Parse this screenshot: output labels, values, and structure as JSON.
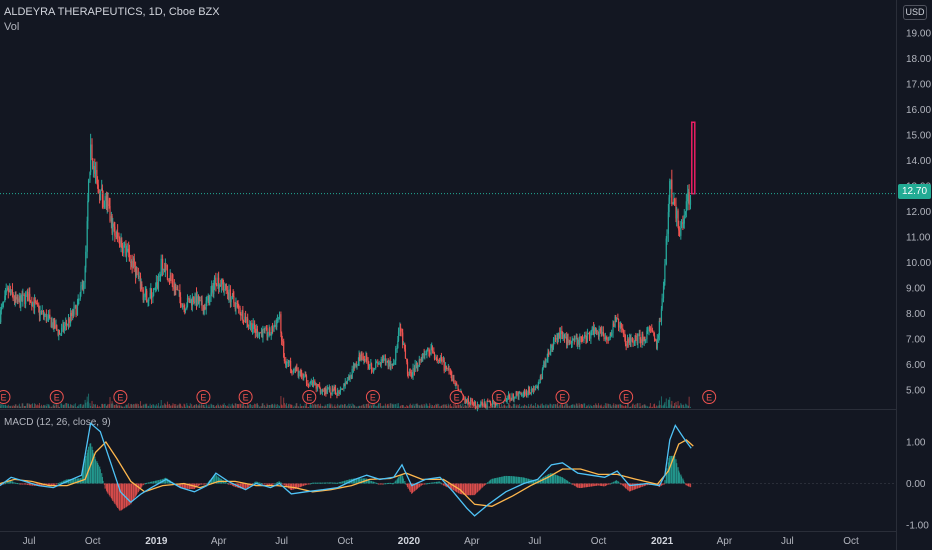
{
  "header": {
    "symbol_title": "ALDEYRA THERAPEUTICS, 1D, Cboe BZX",
    "volume_label": "Vol",
    "currency": "USD",
    "current_price": "12.70",
    "macd_label": "MACD (12, 26, close, 9)"
  },
  "colors": {
    "background": "#131722",
    "up": "#26a69a",
    "down": "#ef5350",
    "macd_line": "#4fc3f7",
    "signal_line": "#ffb74d",
    "price_line": "#22ab94",
    "earnings_marker": "#ef5350",
    "highlight_bar": "#e91e63"
  },
  "chart_data": [
    {
      "type": "candlestick",
      "title": "ALDEYRA THERAPEUTICS, 1D, Cboe BZX",
      "currency": "USD",
      "y_ticks": [
        "19.00",
        "18.00",
        "17.00",
        "16.00",
        "15.00",
        "14.00",
        "13.00",
        "12.00",
        "11.00",
        "10.00",
        "9.00",
        "8.00",
        "7.00",
        "6.00",
        "5.00"
      ],
      "ylim": [
        4.2,
        19.8
      ],
      "last_price": 12.7,
      "x_ticks": [
        "Jul",
        "Oct",
        "2019",
        "Apr",
        "Jul",
        "Oct",
        "2020",
        "Apr",
        "Jul",
        "Oct",
        "2021",
        "Apr",
        "Jul",
        "Oct"
      ],
      "x_tick_bold": [
        "2019",
        "2020",
        "2021"
      ],
      "x_range": [
        "2018-05-20",
        "2021-12-05"
      ],
      "close_path": [
        [
          "2018-05-20",
          7.9
        ],
        [
          "2018-06-01",
          8.9
        ],
        [
          "2018-06-15",
          8.4
        ],
        [
          "2018-07-01",
          8.7
        ],
        [
          "2018-07-15",
          8.1
        ],
        [
          "2018-08-01",
          7.7
        ],
        [
          "2018-08-15",
          7.2
        ],
        [
          "2018-09-01",
          7.9
        ],
        [
          "2018-09-10",
          8.3
        ],
        [
          "2018-09-20",
          9.5
        ],
        [
          "2018-09-28",
          14.4
        ],
        [
          "2018-10-08",
          12.9
        ],
        [
          "2018-10-20",
          12.4
        ],
        [
          "2018-11-01",
          11.2
        ],
        [
          "2018-11-15",
          10.6
        ],
        [
          "2018-12-01",
          9.8
        ],
        [
          "2018-12-15",
          8.6
        ],
        [
          "2019-01-01",
          8.9
        ],
        [
          "2019-01-10",
          10.0
        ],
        [
          "2019-01-25",
          9.2
        ],
        [
          "2019-02-10",
          8.3
        ],
        [
          "2019-02-25",
          8.6
        ],
        [
          "2019-03-10",
          8.2
        ],
        [
          "2019-03-20",
          8.6
        ],
        [
          "2019-03-28",
          9.4
        ],
        [
          "2019-04-10",
          9.0
        ],
        [
          "2019-04-25",
          8.4
        ],
        [
          "2019-05-10",
          7.8
        ],
        [
          "2019-05-25",
          7.3
        ],
        [
          "2019-06-15",
          7.2
        ],
        [
          "2019-06-28",
          7.9
        ],
        [
          "2019-07-05",
          6.2
        ],
        [
          "2019-07-20",
          5.8
        ],
        [
          "2019-08-10",
          5.3
        ],
        [
          "2019-08-30",
          5.0
        ],
        [
          "2019-09-20",
          4.9
        ],
        [
          "2019-10-10",
          5.6
        ],
        [
          "2019-10-25",
          6.4
        ],
        [
          "2019-11-10",
          5.9
        ],
        [
          "2019-11-25",
          6.1
        ],
        [
          "2019-12-10",
          6.0
        ],
        [
          "2019-12-20",
          7.4
        ],
        [
          "2020-01-01",
          5.5
        ],
        [
          "2020-01-20",
          6.3
        ],
        [
          "2020-02-01",
          6.6
        ],
        [
          "2020-02-20",
          6.0
        ],
        [
          "2020-03-05",
          5.4
        ],
        [
          "2020-03-20",
          4.6
        ],
        [
          "2020-04-10",
          4.4
        ],
        [
          "2020-05-01",
          4.5
        ],
        [
          "2020-05-25",
          4.7
        ],
        [
          "2020-06-15",
          4.9
        ],
        [
          "2020-07-05",
          5.1
        ],
        [
          "2020-07-20",
          6.4
        ],
        [
          "2020-08-05",
          7.2
        ],
        [
          "2020-08-25",
          6.8
        ],
        [
          "2020-09-10",
          7.0
        ],
        [
          "2020-09-25",
          7.4
        ],
        [
          "2020-10-15",
          7.1
        ],
        [
          "2020-10-28",
          7.8
        ],
        [
          "2020-11-10",
          6.9
        ],
        [
          "2020-12-01",
          7.0
        ],
        [
          "2020-12-15",
          7.3
        ],
        [
          "2020-12-25",
          6.7
        ],
        [
          "2021-01-05",
          9.5
        ],
        [
          "2021-01-12",
          13.2
        ],
        [
          "2021-01-20",
          12.0
        ],
        [
          "2021-01-28",
          11.2
        ],
        [
          "2021-02-05",
          12.4
        ],
        [
          "2021-02-12",
          12.7
        ]
      ],
      "highlight_bar": {
        "date": "2021-02-15",
        "low": 12.7,
        "high": 15.5
      },
      "earnings_markers": {
        "label": "E",
        "dates": [
          "2018-05-25",
          "2018-08-10",
          "2018-11-10",
          "2019-03-10",
          "2019-05-10",
          "2019-08-10",
          "2019-11-10",
          "2020-03-10",
          "2020-05-10",
          "2020-08-10",
          "2020-11-10",
          "2021-03-10"
        ]
      }
    },
    {
      "type": "macd",
      "title": "MACD (12, 26, close, 9)",
      "y_ticks": [
        "1.00",
        "0.00",
        "-1.00"
      ],
      "ylim": [
        -1.05,
        1.5
      ],
      "macd_path": [
        [
          "2018-05-20",
          -0.05
        ],
        [
          "2018-06-05",
          0.15
        ],
        [
          "2018-06-25",
          0.05
        ],
        [
          "2018-07-15",
          -0.05
        ],
        [
          "2018-08-05",
          -0.1
        ],
        [
          "2018-08-25",
          0.05
        ],
        [
          "2018-09-15",
          0.2
        ],
        [
          "2018-09-28",
          1.45
        ],
        [
          "2018-10-12",
          1.25
        ],
        [
          "2018-10-25",
          0.6
        ],
        [
          "2018-11-10",
          -0.2
        ],
        [
          "2018-11-25",
          -0.45
        ],
        [
          "2018-12-10",
          -0.25
        ],
        [
          "2018-12-25",
          -0.1
        ],
        [
          "2019-01-15",
          0.1
        ],
        [
          "2019-02-05",
          -0.1
        ],
        [
          "2019-02-25",
          -0.2
        ],
        [
          "2019-03-15",
          -0.05
        ],
        [
          "2019-03-28",
          0.25
        ],
        [
          "2019-04-15",
          0.05
        ],
        [
          "2019-05-10",
          -0.15
        ],
        [
          "2019-05-25",
          0.0
        ],
        [
          "2019-06-15",
          -0.1
        ],
        [
          "2019-06-28",
          0.0
        ],
        [
          "2019-07-15",
          -0.25
        ],
        [
          "2019-08-05",
          -0.2
        ],
        [
          "2019-08-30",
          -0.15
        ],
        [
          "2019-09-20",
          -0.1
        ],
        [
          "2019-10-15",
          0.1
        ],
        [
          "2019-11-01",
          0.2
        ],
        [
          "2019-11-20",
          0.1
        ],
        [
          "2019-12-10",
          0.15
        ],
        [
          "2019-12-22",
          0.45
        ],
        [
          "2020-01-05",
          -0.05
        ],
        [
          "2020-01-25",
          0.1
        ],
        [
          "2020-02-15",
          0.15
        ],
        [
          "2020-03-05",
          -0.2
        ],
        [
          "2020-03-25",
          -0.6
        ],
        [
          "2020-04-05",
          -0.78
        ],
        [
          "2020-04-25",
          -0.5
        ],
        [
          "2020-05-20",
          -0.2
        ],
        [
          "2020-06-15",
          0.0
        ],
        [
          "2020-07-05",
          0.1
        ],
        [
          "2020-07-25",
          0.45
        ],
        [
          "2020-08-10",
          0.5
        ],
        [
          "2020-09-01",
          0.25
        ],
        [
          "2020-09-20",
          0.2
        ],
        [
          "2020-10-10",
          0.15
        ],
        [
          "2020-10-28",
          0.3
        ],
        [
          "2020-11-15",
          -0.05
        ],
        [
          "2020-12-10",
          0.0
        ],
        [
          "2020-12-28",
          -0.05
        ],
        [
          "2021-01-05",
          0.2
        ],
        [
          "2021-01-12",
          1.05
        ],
        [
          "2021-01-20",
          1.4
        ],
        [
          "2021-02-01",
          1.1
        ],
        [
          "2021-02-12",
          0.85
        ]
      ],
      "signal_path": [
        [
          "2018-05-20",
          0.0
        ],
        [
          "2018-06-10",
          0.1
        ],
        [
          "2018-07-05",
          0.05
        ],
        [
          "2018-07-30",
          -0.05
        ],
        [
          "2018-08-25",
          -0.05
        ],
        [
          "2018-09-20",
          0.1
        ],
        [
          "2018-10-05",
          0.75
        ],
        [
          "2018-10-20",
          1.0
        ],
        [
          "2018-11-05",
          0.6
        ],
        [
          "2018-11-25",
          0.05
        ],
        [
          "2018-12-15",
          -0.2
        ],
        [
          "2019-01-10",
          -0.05
        ],
        [
          "2019-02-10",
          0.0
        ],
        [
          "2019-03-05",
          -0.1
        ],
        [
          "2019-04-01",
          0.05
        ],
        [
          "2019-04-25",
          0.05
        ],
        [
          "2019-05-25",
          -0.05
        ],
        [
          "2019-06-25",
          -0.05
        ],
        [
          "2019-07-20",
          -0.1
        ],
        [
          "2019-08-15",
          -0.2
        ],
        [
          "2019-09-10",
          -0.15
        ],
        [
          "2019-10-10",
          -0.05
        ],
        [
          "2019-11-05",
          0.1
        ],
        [
          "2019-12-05",
          0.12
        ],
        [
          "2019-12-28",
          0.25
        ],
        [
          "2020-01-20",
          0.1
        ],
        [
          "2020-02-20",
          0.1
        ],
        [
          "2020-03-15",
          -0.15
        ],
        [
          "2020-04-05",
          -0.5
        ],
        [
          "2020-04-30",
          -0.55
        ],
        [
          "2020-05-30",
          -0.3
        ],
        [
          "2020-06-25",
          -0.05
        ],
        [
          "2020-07-20",
          0.15
        ],
        [
          "2020-08-10",
          0.35
        ],
        [
          "2020-09-05",
          0.35
        ],
        [
          "2020-10-01",
          0.22
        ],
        [
          "2020-10-28",
          0.22
        ],
        [
          "2020-11-25",
          0.1
        ],
        [
          "2020-12-25",
          -0.02
        ],
        [
          "2021-01-10",
          0.3
        ],
        [
          "2021-01-25",
          0.95
        ],
        [
          "2021-02-05",
          1.05
        ],
        [
          "2021-02-15",
          0.9
        ]
      ]
    }
  ]
}
